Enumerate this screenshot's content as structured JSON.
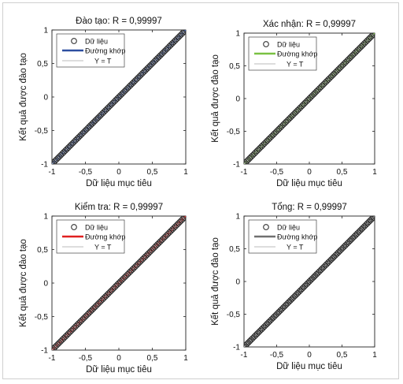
{
  "chart_data": [
    {
      "type": "scatter",
      "title": "Đào tạo: R = 0,99997",
      "xlabel": "Dữ liệu mục tiêu",
      "ylabel": "Kết quả được đào tạo",
      "xlim": [
        -1,
        1
      ],
      "ylim": [
        -1,
        1
      ],
      "x_ticks": [
        "-1",
        "-0,5",
        "0",
        "0,5",
        "1"
      ],
      "y_ticks": [
        "-1",
        "-0,5",
        "0",
        "0,5",
        "1"
      ],
      "grid": false,
      "legend_position": "top-left",
      "series": [
        {
          "name": "Dữ liệu",
          "kind": "markers",
          "x": [
            -1,
            1
          ],
          "y": [
            -1,
            1
          ],
          "color": "#333333"
        },
        {
          "name": "Đường khớp",
          "kind": "line",
          "x": [
            -1,
            1
          ],
          "y": [
            -1,
            1
          ],
          "color": "#2d4fa0"
        },
        {
          "name": "Y = T",
          "kind": "line",
          "x": [
            -1,
            1
          ],
          "y": [
            -1,
            1
          ],
          "color": "#bbbbbb"
        }
      ]
    },
    {
      "type": "scatter",
      "title": "Xác nhận: R = 0,99997",
      "xlabel": "Dữ liệu mục tiêu",
      "ylabel": "Kết quả được đào tạo",
      "xlim": [
        -1,
        1
      ],
      "ylim": [
        -1,
        1
      ],
      "x_ticks": [
        "-1",
        "-0,5",
        "0",
        "0,5",
        "1"
      ],
      "y_ticks": [
        "-1",
        "-0,5",
        "0",
        "0,5",
        "1"
      ],
      "grid": false,
      "legend_position": "top-left",
      "series": [
        {
          "name": "Dữ liệu",
          "kind": "markers",
          "x": [
            -1,
            1
          ],
          "y": [
            -1,
            1
          ],
          "color": "#333333"
        },
        {
          "name": "Đường khớp",
          "kind": "line",
          "x": [
            -1,
            1
          ],
          "y": [
            -1,
            1
          ],
          "color": "#7ac143"
        },
        {
          "name": "Y = T",
          "kind": "line",
          "x": [
            -1,
            1
          ],
          "y": [
            -1,
            1
          ],
          "color": "#bbbbbb"
        }
      ]
    },
    {
      "type": "scatter",
      "title": "Kiểm tra: R = 0,99997",
      "xlabel": "Dữ liệu mục tiêu",
      "ylabel": "Kết quả được đào tạo",
      "xlim": [
        -1,
        1
      ],
      "ylim": [
        -1,
        1
      ],
      "x_ticks": [
        "-1",
        "-0,5",
        "0",
        "0,5",
        "1"
      ],
      "y_ticks": [
        "-1",
        "-0,5",
        "0",
        "0,5",
        "1"
      ],
      "grid": false,
      "legend_position": "top-left",
      "series": [
        {
          "name": "Dữ liệu",
          "kind": "markers",
          "x": [
            -1,
            1
          ],
          "y": [
            -1,
            1
          ],
          "color": "#333333"
        },
        {
          "name": "Đường khớp",
          "kind": "line",
          "x": [
            -1,
            1
          ],
          "y": [
            -1,
            1
          ],
          "color": "#e02020"
        },
        {
          "name": "Y = T",
          "kind": "line",
          "x": [
            -1,
            1
          ],
          "y": [
            -1,
            1
          ],
          "color": "#bbbbbb"
        }
      ]
    },
    {
      "type": "scatter",
      "title": "Tổng: R = 0,99997",
      "xlabel": "Dữ liệu mục tiêu",
      "ylabel": "Kết quả được đào tạo",
      "xlim": [
        -1,
        1
      ],
      "ylim": [
        -1,
        1
      ],
      "x_ticks": [
        "-1",
        "-0,5",
        "0",
        "0,5",
        "1"
      ],
      "y_ticks": [
        "-1",
        "-0,5",
        "0",
        "0,5",
        "1"
      ],
      "grid": false,
      "legend_position": "top-left",
      "series": [
        {
          "name": "Dữ liệu",
          "kind": "markers",
          "x": [
            -1,
            1
          ],
          "y": [
            -1,
            1
          ],
          "color": "#333333"
        },
        {
          "name": "Đường khớp",
          "kind": "line",
          "x": [
            -1,
            1
          ],
          "y": [
            -1,
            1
          ],
          "color": "#707070"
        },
        {
          "name": "Y = T",
          "kind": "line",
          "x": [
            -1,
            1
          ],
          "y": [
            -1,
            1
          ],
          "color": "#bbbbbb"
        }
      ]
    }
  ]
}
